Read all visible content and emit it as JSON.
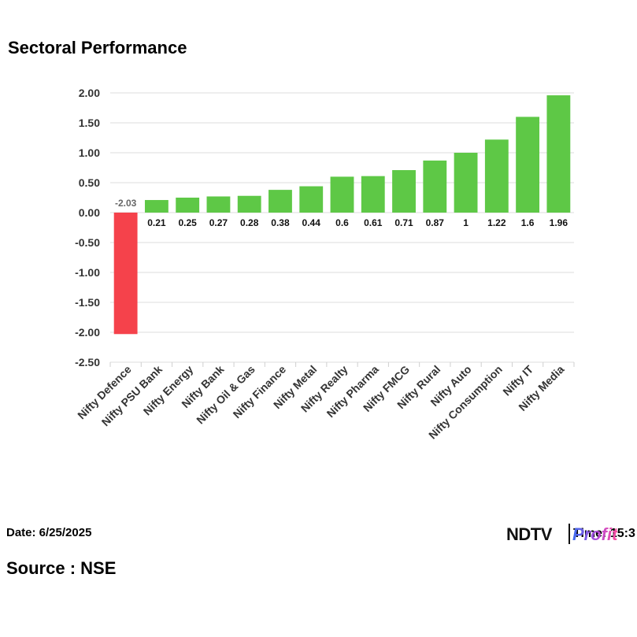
{
  "chart_data": {
    "type": "bar",
    "title": "Sectoral Performance",
    "categories": [
      "Nifty Defence",
      "Nifty PSU Bank",
      "Nifty Energy",
      "Nifty Bank",
      "Nifty Oil & Gas",
      "Nifty Finance",
      "Nifty Metal",
      "Nifty Realty",
      "Nifty Pharma",
      "Nifty FMCG",
      "Nifty Rural",
      "Nifty Auto",
      "Nifty Consumption",
      "Nifty IT",
      "Nifty Media"
    ],
    "values": [
      -2.03,
      0.21,
      0.25,
      0.27,
      0.28,
      0.38,
      0.44,
      0.6,
      0.61,
      0.71,
      0.87,
      1,
      1.22,
      1.6,
      1.96
    ],
    "value_labels": [
      "-2.03",
      "0.21",
      "0.25",
      "0.27",
      "0.28",
      "0.38",
      "0.44",
      "0.6",
      "0.61",
      "0.71",
      "0.87",
      "1",
      "1.22",
      "1.6",
      "1.96"
    ],
    "yticks": [
      "2.00",
      "1.50",
      "1.00",
      "0.50",
      "0.00",
      "-0.50",
      "-1.00",
      "-1.50",
      "-2.00",
      "-2.50"
    ],
    "ylim": [
      -2.5,
      2.0
    ],
    "xlabel": "",
    "ylabel": "",
    "grid": true,
    "colors": {
      "positive": "#5ec846",
      "negative": "#f5424b"
    }
  },
  "footer": {
    "date": "Date: 6/25/2025",
    "source": "Source : NSE",
    "time_fragment": "Time: 15:3",
    "logo_ndtv": "NDTV",
    "logo_profit": "Profit"
  }
}
